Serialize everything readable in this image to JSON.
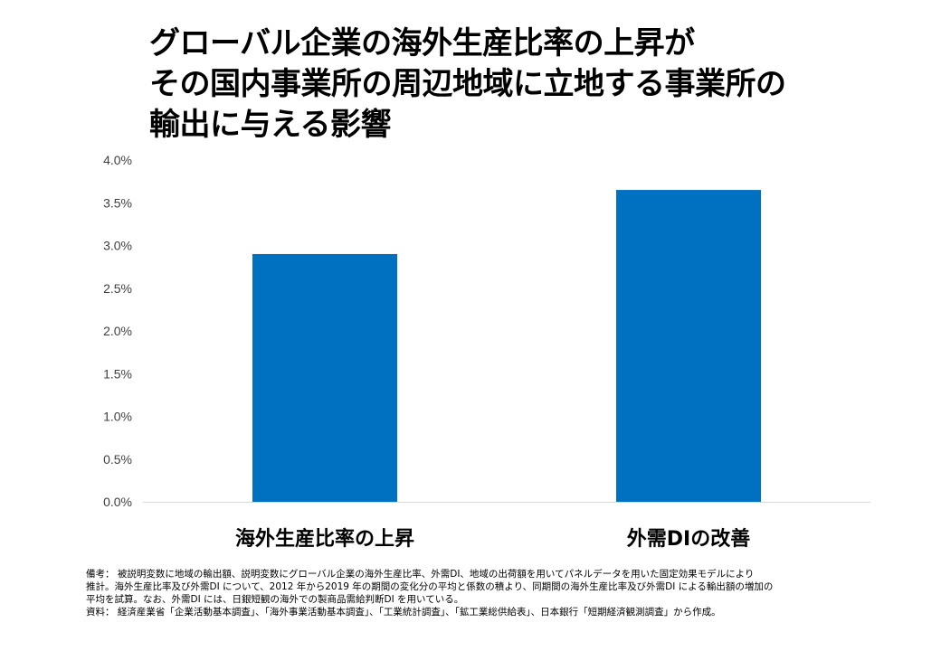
{
  "title": {
    "line1": "グローバル企業の海外生産比率の上昇が",
    "line2": "その国内事業所の周辺地域に立地する事業所の",
    "line3": "輸出に与える影響"
  },
  "chart_data": {
    "type": "bar",
    "categories": [
      "海外生産比率の上昇",
      "外需DIの改善"
    ],
    "values": [
      2.9,
      3.65
    ],
    "ylim": [
      0,
      4.0
    ],
    "yticks": [
      "0.0%",
      "0.5%",
      "1.0%",
      "1.5%",
      "2.0%",
      "2.5%",
      "3.0%",
      "3.5%",
      "4.0%"
    ],
    "ytick_values": [
      0,
      0.5,
      1.0,
      1.5,
      2.0,
      2.5,
      3.0,
      3.5,
      4.0
    ],
    "bar_color": "#0070C0",
    "grid": false,
    "legend": "none"
  },
  "notes": {
    "line1": "備考： 被説明変数に地域の輸出額、説明変数にグローバル企業の海外生産比率、外需DI、地域の出荷額を用いてパネルデータを用いた固定効果モデルにより",
    "line2": "推計。海外生産比率及び外需DI について、2012 年から2019 年の期間の変化分の平均と係数の積より、同期間の海外生産比率及び外需DI による輸出額の増加の",
    "line3": "平均を試算。なお、外需DI には、日銀短観の海外での製商品需給判断DI を用いている。",
    "line4": "資料： 経済産業省「企業活動基本調査」、「海外事業活動基本調査」、「工業統計調査」、「鉱工業総供給表」、日本銀行「短期経済観測調査」から作成。"
  }
}
